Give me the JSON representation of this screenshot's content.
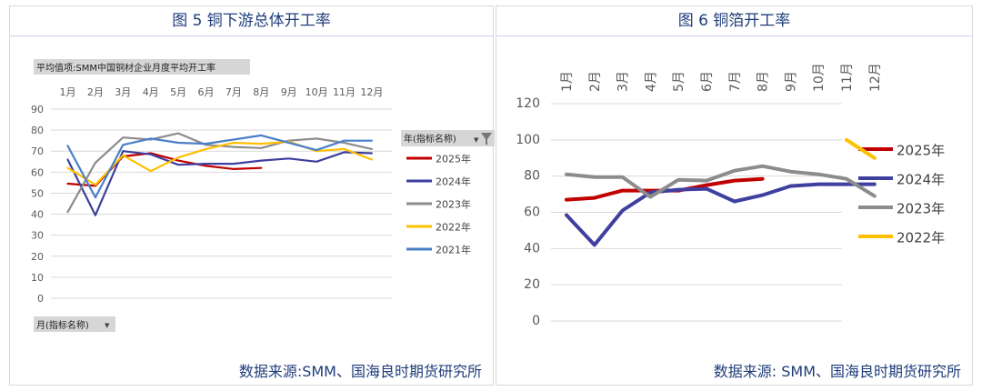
{
  "left": {
    "title": "图 5  铜下游总体开工率",
    "source": "数据来源:SMM、国海良时期货研究所",
    "pivot_value_label": "平均值项:SMM中国铜材企业月度平均开工率",
    "pivot_row_label": "月(指标名称)",
    "pivot_legend_label": "年(指标名称)",
    "colors": {
      "2025年": "#c00000",
      "2024年": "#3f3f9f",
      "2023年": "#8c8c8c",
      "2022年": "#ffc000",
      "2021年": "#4a7fc8"
    }
  },
  "right": {
    "title": "图 6  铜箔开工率",
    "source": "数据来源: SMM、国海良时期货研究所",
    "colors": {
      "2025年": "#c00000",
      "2024年": "#3f3f9f",
      "2023年": "#8c8c8c",
      "2022年": "#ffc000"
    }
  },
  "chart_data": [
    {
      "type": "line",
      "title": "",
      "categories": [
        "1月",
        "2月",
        "3月",
        "4月",
        "5月",
        "6月",
        "7月",
        "8月",
        "9月",
        "10月",
        "11月",
        "12月"
      ],
      "yticks": [
        "0",
        "10",
        "20",
        "30",
        "40",
        "50",
        "60",
        "70",
        "80",
        "90"
      ],
      "ylim": [
        0,
        90
      ],
      "grid": true,
      "legend_position": "right",
      "series": [
        {
          "name": "2025年",
          "values": [
            54.5,
            53.5,
            67.5,
            69,
            65.5,
            63,
            61.5,
            62,
            null,
            null,
            null,
            null
          ]
        },
        {
          "name": "2024年",
          "values": [
            66,
            39.5,
            70,
            68.5,
            63.5,
            64,
            64,
            65.5,
            66.5,
            65,
            69.5,
            69
          ]
        },
        {
          "name": "2023年",
          "values": [
            41,
            64.5,
            76.5,
            75.5,
            78.5,
            73,
            72,
            71.5,
            75,
            76,
            74,
            71
          ]
        },
        {
          "name": "2022年",
          "values": [
            62,
            54,
            68,
            60.5,
            67,
            71,
            74,
            73.5,
            74.5,
            70,
            71,
            66
          ]
        },
        {
          "name": "2021年",
          "values": [
            72.5,
            48,
            73,
            76,
            74,
            73.5,
            75.5,
            77.5,
            74,
            70.5,
            75,
            75
          ]
        }
      ]
    },
    {
      "type": "line",
      "title": "",
      "categories": [
        "1月",
        "2月",
        "3月",
        "4月",
        "5月",
        "6月",
        "7月",
        "8月",
        "9月",
        "10月",
        "11月",
        "12月"
      ],
      "yticks": [
        "0",
        "20",
        "40",
        "60",
        "80",
        "100",
        "120"
      ],
      "ylim": [
        0,
        120
      ],
      "grid": true,
      "legend_position": "right",
      "series": [
        {
          "name": "2025年",
          "values": [
            67,
            68,
            72,
            72,
            72,
            75,
            77.5,
            78.5,
            null,
            null,
            null,
            null
          ]
        },
        {
          "name": "2024年",
          "values": [
            58.5,
            42,
            61,
            71,
            72.5,
            73,
            66,
            69.5,
            74.5,
            75.5,
            75.5,
            75.5
          ]
        },
        {
          "name": "2023年",
          "values": [
            81,
            79.5,
            79.5,
            68.5,
            78,
            77.5,
            83,
            85.5,
            82.5,
            81,
            78.5,
            69
          ]
        },
        {
          "name": "2022年",
          "values": [
            null,
            null,
            null,
            null,
            null,
            null,
            null,
            null,
            null,
            null,
            100,
            90
          ]
        }
      ]
    }
  ]
}
